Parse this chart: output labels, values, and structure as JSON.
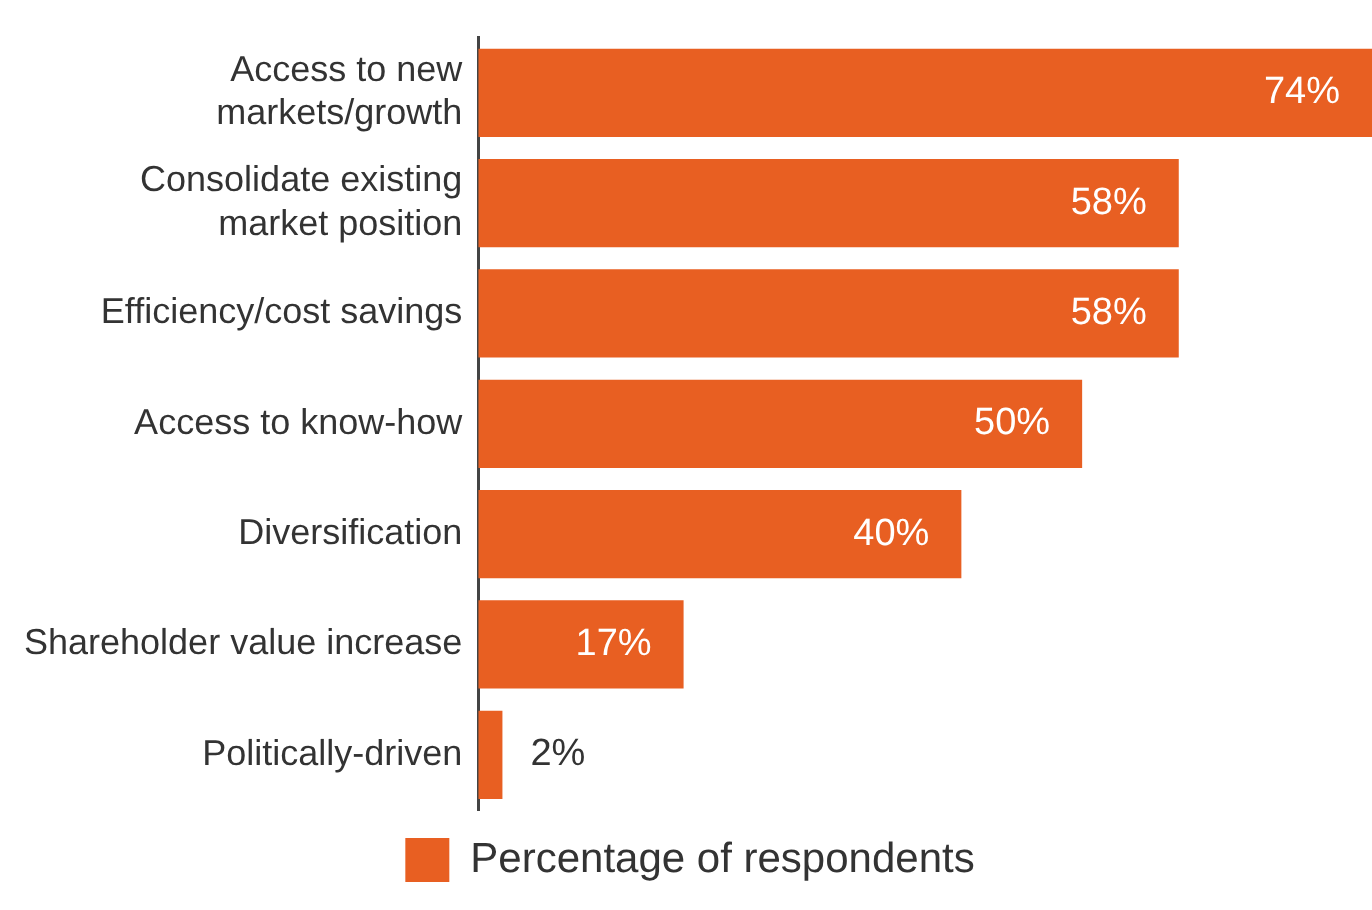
{
  "chart_data": {
    "type": "bar",
    "orientation": "horizontal",
    "categories": [
      "Access to new markets/growth",
      "Consolidate existing market position",
      "Efficiency/cost savings",
      "Access to know-how",
      "Diversification",
      "Shareholder value increase",
      "Politically-driven"
    ],
    "series": [
      {
        "name": "Percentage of respondents",
        "color": "#e85f22",
        "values": [
          74,
          58,
          58,
          50,
          40,
          17,
          2
        ],
        "value_labels": [
          "74%",
          "58%",
          "58%",
          "50%",
          "40%",
          "17%",
          "2%"
        ]
      }
    ],
    "legend": "bottom",
    "grid": false
  }
}
